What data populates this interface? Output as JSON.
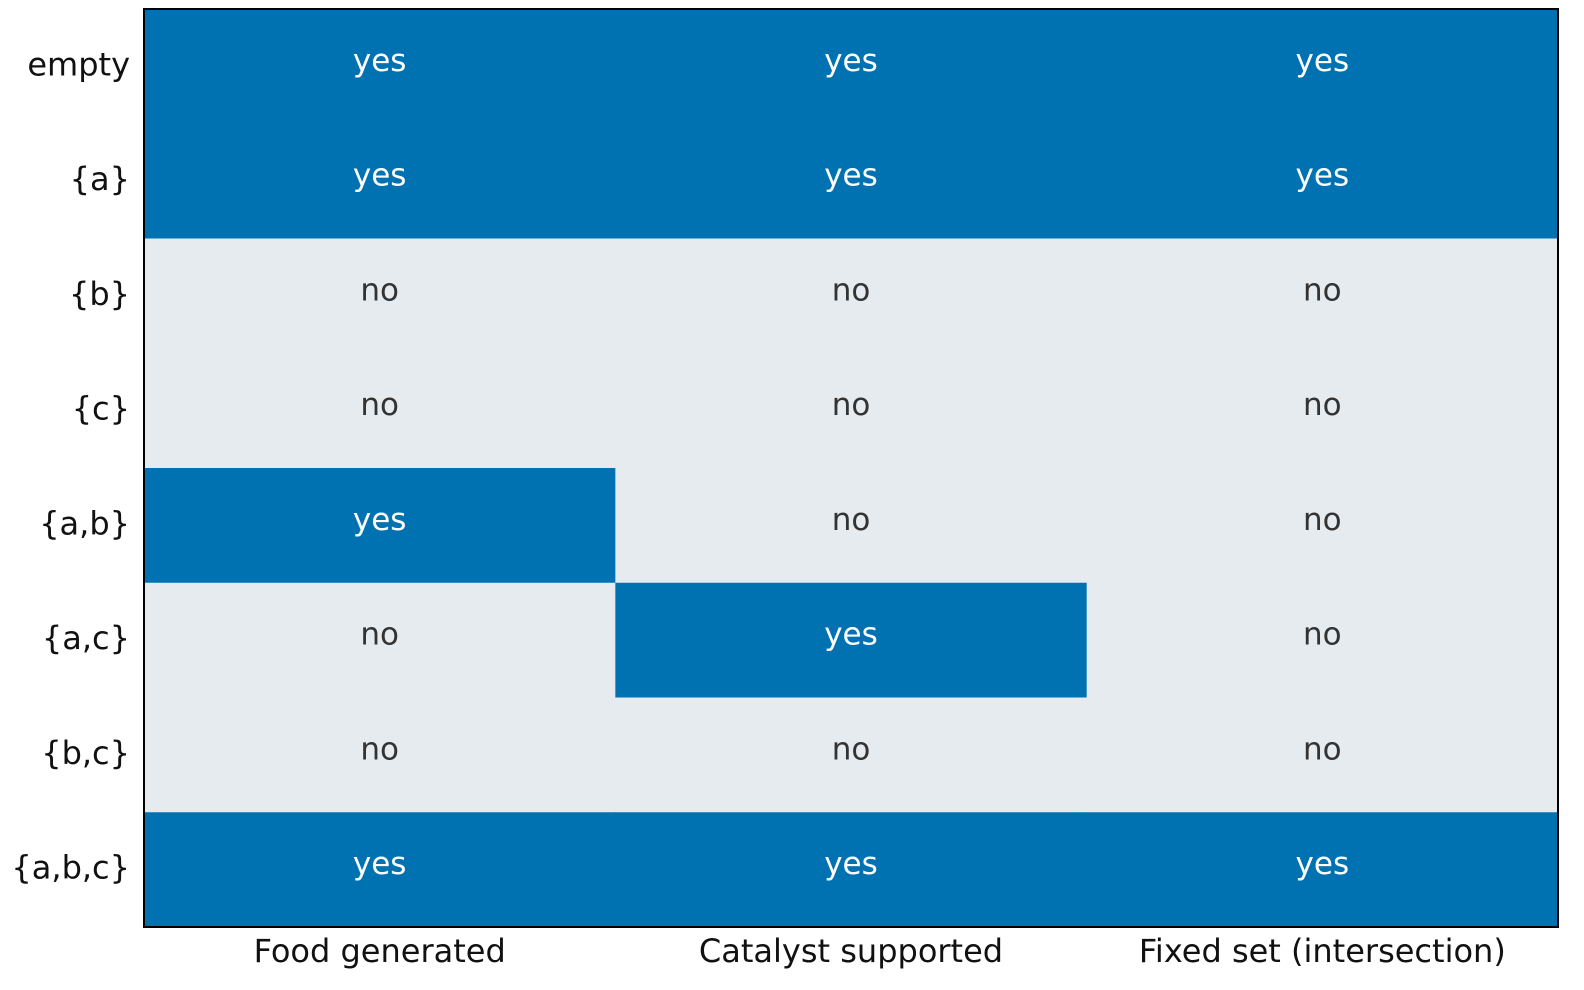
{
  "chart_data": {
    "type": "heatmap",
    "rows": [
      "empty",
      "{a}",
      "{b}",
      "{c}",
      "{a,b}",
      "{a,c}",
      "{b,c}",
      "{a,b,c}"
    ],
    "columns": [
      "Food generated",
      "Catalyst supported",
      "Fixed set (intersection)"
    ],
    "values": [
      [
        "yes",
        "yes",
        "yes"
      ],
      [
        "yes",
        "yes",
        "yes"
      ],
      [
        "no",
        "no",
        "no"
      ],
      [
        "no",
        "no",
        "no"
      ],
      [
        "yes",
        "no",
        "no"
      ],
      [
        "no",
        "yes",
        "no"
      ],
      [
        "no",
        "no",
        "no"
      ],
      [
        "yes",
        "yes",
        "yes"
      ]
    ],
    "colors": {
      "yes": "#0072b2",
      "no": "#e6ebef"
    },
    "text_colors": {
      "yes": "#ffffff",
      "no": "#333333"
    }
  }
}
